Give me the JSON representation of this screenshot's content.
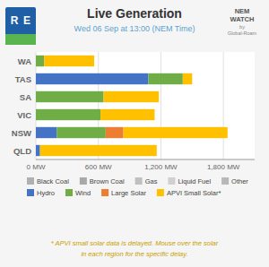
{
  "chart_data": {
    "type": "bar",
    "orientation": "horizontal",
    "stacked": true,
    "grid": true,
    "title": "Live Generation",
    "subtitle": "Wed 06 Sep at 13:00 (NEM Time)",
    "categories": [
      "WA",
      "TAS",
      "SA",
      "VIC",
      "NSW",
      "QLD"
    ],
    "series": [
      {
        "name": "Black Coal",
        "color": "#b0b0b0",
        "values": [
          null,
          null,
          null,
          null,
          null,
          null
        ]
      },
      {
        "name": "Brown Coal",
        "color": "#a8a8a8",
        "values": [
          null,
          null,
          null,
          null,
          null,
          null
        ]
      },
      {
        "name": "Gas",
        "color": "#c0c0c0",
        "values": [
          null,
          null,
          null,
          null,
          null,
          null
        ]
      },
      {
        "name": "Liquid Fuel",
        "color": "#d0d0d0",
        "values": [
          null,
          null,
          null,
          null,
          null,
          null
        ]
      },
      {
        "name": "Other",
        "color": "#b8b8b8",
        "values": [
          null,
          null,
          null,
          null,
          null,
          null
        ]
      },
      {
        "name": "Hydro",
        "color": "#4472c4",
        "values": [
          0,
          1080,
          0,
          0,
          200,
          40
        ]
      },
      {
        "name": "Wind",
        "color": "#70ad47",
        "values": [
          80,
          330,
          650,
          620,
          470,
          0
        ]
      },
      {
        "name": "Large Solar",
        "color": "#ed7d31",
        "values": [
          0,
          0,
          0,
          0,
          170,
          0
        ]
      },
      {
        "name": "APVI Small Solar*",
        "color": "#ffc000",
        "values": [
          480,
          90,
          530,
          520,
          1000,
          1120
        ]
      }
    ],
    "xlim": [
      0,
      2100
    ],
    "xticks": [
      {
        "value": 0,
        "label": "0 MW"
      },
      {
        "value": 600,
        "label": "600 MW"
      },
      {
        "value": 1200,
        "label": "1,200 MW"
      },
      {
        "value": 1800,
        "label": "1,800 MW"
      }
    ],
    "annotations": [
      {
        "text": "R"
      },
      {
        "text": "E"
      },
      {
        "text": "NEM"
      },
      {
        "text": "WATCH"
      },
      {
        "text": "by"
      },
      {
        "text": "Global-Roam"
      },
      {
        "text": "* APVI small solar data is delayed. Mouse over the solar"
      },
      {
        "text": "in each region for the specific delay."
      }
    ]
  }
}
